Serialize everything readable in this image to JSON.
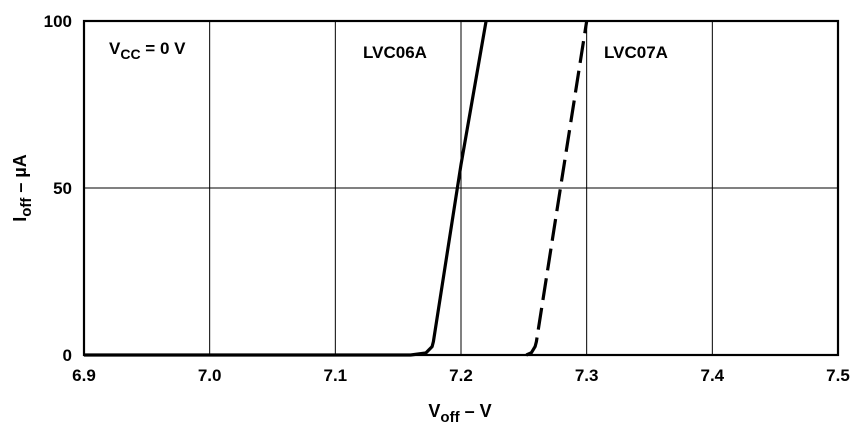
{
  "chart_data": {
    "type": "line",
    "title": "",
    "xlabel": {
      "main": "V",
      "sub": "off",
      "unit": " – V"
    },
    "ylabel": {
      "main": "I",
      "sub": "off",
      "unit": " – µA"
    },
    "xlim": [
      6.9,
      7.5
    ],
    "ylim": [
      0,
      100
    ],
    "xticks": [
      "6.9",
      "7.0",
      "7.1",
      "7.2",
      "7.3",
      "7.4",
      "7.5"
    ],
    "yticks": [
      "0",
      "50",
      "100"
    ],
    "grid": true,
    "annotations": {
      "condition": {
        "main": "V",
        "sub": "CC",
        "rest": " = 0 V"
      },
      "series1_label": "LVC06A",
      "series2_label": "LVC07A"
    },
    "series": [
      {
        "name": "LVC06A",
        "style": "solid",
        "x": [
          6.9,
          7.16,
          7.172,
          7.177,
          7.178,
          7.2,
          7.22
        ],
        "y": [
          0,
          0,
          0.6,
          2.5,
          4,
          57,
          100
        ]
      },
      {
        "name": "LVC07A",
        "style": "dashed",
        "x": [
          7.252,
          7.256,
          7.259,
          7.26,
          7.28,
          7.3
        ],
        "y": [
          0,
          0.7,
          2.5,
          4,
          52,
          100
        ]
      }
    ]
  }
}
